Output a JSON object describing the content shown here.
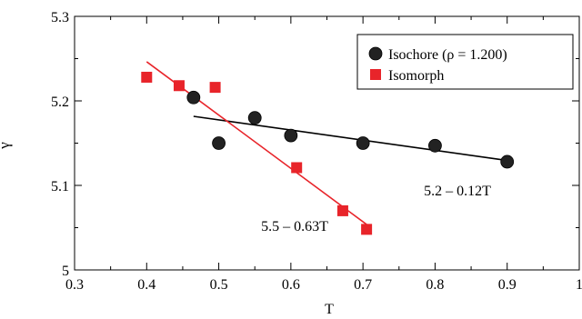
{
  "chart_data": {
    "type": "scatter",
    "xlabel": "T",
    "ylabel": "γ",
    "xlim": [
      0.3,
      1.0
    ],
    "ylim": [
      5.0,
      5.3
    ],
    "xticks": [
      0.3,
      0.4,
      0.5,
      0.6,
      0.7,
      0.8,
      0.9,
      1.0
    ],
    "xtick_labels": [
      "0.3",
      "0.4",
      "0.5",
      "0.6",
      "0.7",
      "0.8",
      "0.9",
      "1"
    ],
    "yticks": [
      5.0,
      5.1,
      5.2,
      5.3
    ],
    "ytick_labels": [
      "5",
      "5.1",
      "5.2",
      "5.3"
    ],
    "grid": false,
    "legend_position": "top-right",
    "series": [
      {
        "name": "Isochore (ρ = 1.200)",
        "marker": "circle",
        "color": "#222222",
        "x": [
          0.465,
          0.5,
          0.55,
          0.6,
          0.7,
          0.8,
          0.9
        ],
        "y": [
          5.204,
          5.15,
          5.18,
          5.159,
          5.15,
          5.147,
          5.128
        ],
        "fit": {
          "label": "5.2 – 0.12T",
          "x_range": [
            0.465,
            0.9
          ],
          "intercept": 5.2375,
          "slope": -0.12,
          "color": "#000000"
        }
      },
      {
        "name": "Isomorph",
        "marker": "square",
        "color": "#e8242a",
        "x": [
          0.4,
          0.445,
          0.495,
          0.608,
          0.672,
          0.705
        ],
        "y": [
          5.228,
          5.218,
          5.216,
          5.121,
          5.07,
          5.048
        ],
        "fit": {
          "label": "5.5 – 0.63T",
          "x_range": [
            0.4,
            0.705
          ],
          "intercept": 5.4987,
          "slope": -0.631,
          "color": "#e8242a"
        }
      }
    ]
  }
}
